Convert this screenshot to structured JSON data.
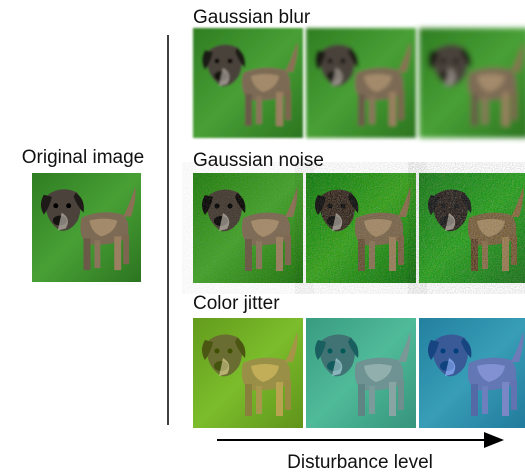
{
  "original_label": "Original image",
  "rows": [
    {
      "label": "Gaussian blur"
    },
    {
      "label": "Gaussian noise"
    },
    {
      "label": "Color jitter"
    }
  ],
  "axis_label": "Disturbance level"
}
